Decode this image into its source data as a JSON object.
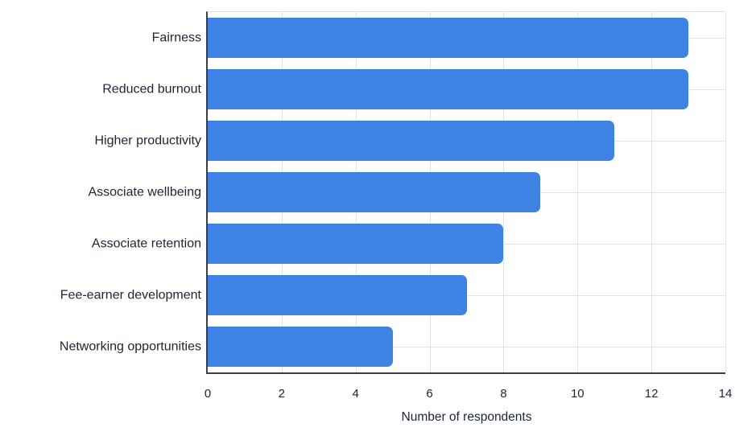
{
  "chart_data": {
    "type": "bar",
    "orientation": "horizontal",
    "title": "",
    "xlabel": "Number of respondents",
    "ylabel": "",
    "categories": [
      "Fairness",
      "Reduced burnout",
      "Higher productivity",
      "Associate wellbeing",
      "Associate retention",
      "Fee-earner development",
      "Networking opportunities"
    ],
    "values": [
      13,
      13,
      11,
      9,
      8,
      7,
      5
    ],
    "xlim": [
      0,
      14
    ],
    "xticks": [
      0,
      2,
      4,
      6,
      8,
      10,
      12,
      14
    ],
    "grid": true,
    "legend": false,
    "colors": {
      "bar": "#3e82e4",
      "grid": "#e0e4e9",
      "axis": "#37404b",
      "text": "#1c2633"
    }
  }
}
